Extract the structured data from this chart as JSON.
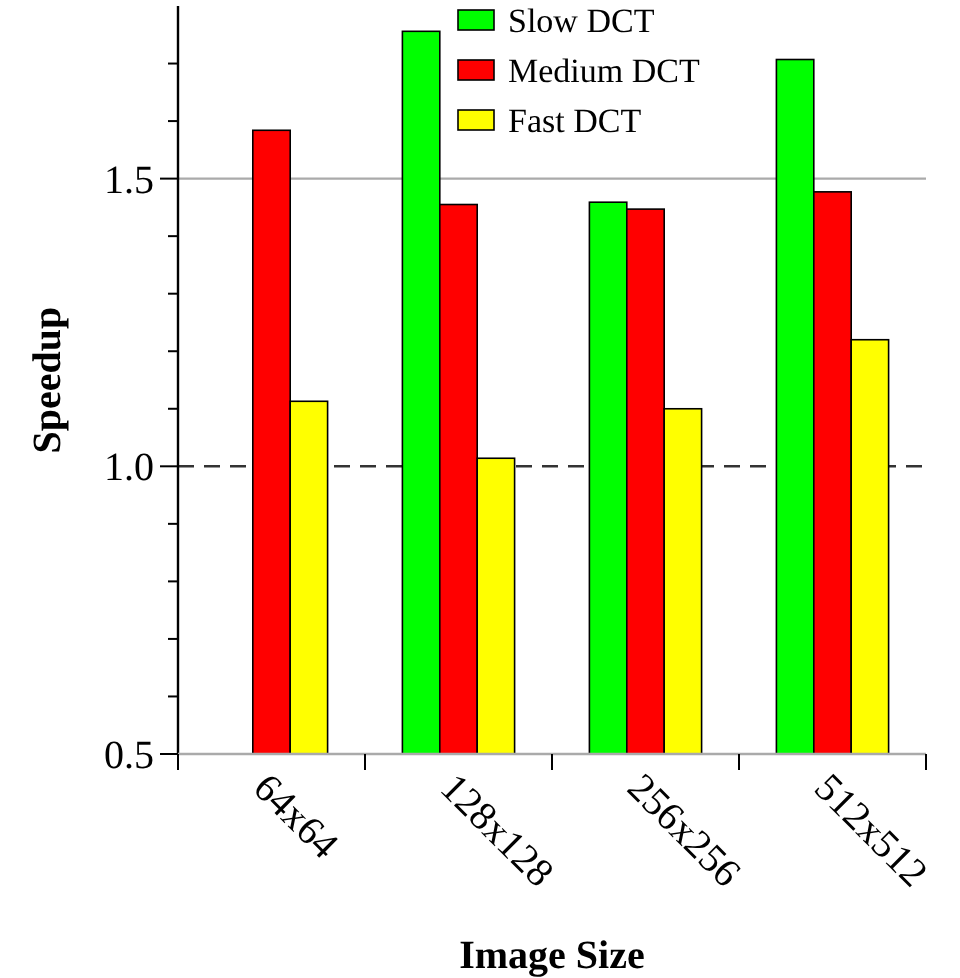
{
  "chart_data": {
    "type": "bar",
    "xlabel": "Image Size",
    "ylabel": "Speedup",
    "categories": [
      "64x64",
      "128x128",
      "256x256",
      "512x512"
    ],
    "series": [
      {
        "name": "Slow DCT",
        "color": "#00ff00",
        "values": [
          null,
          1.756,
          1.459,
          1.707
        ]
      },
      {
        "name": "Medium DCT",
        "color": "#ff0000",
        "values": [
          1.584,
          1.455,
          1.447,
          1.477
        ]
      },
      {
        "name": "Fast DCT",
        "color": "#ffff00",
        "values": [
          1.113,
          1.014,
          1.1,
          1.22
        ]
      }
    ],
    "ylim": [
      0.5,
      1.8
    ],
    "yticks": [
      0.5,
      {
        "value": 0.6,
        "label": null
      },
      {
        "value": 0.7,
        "label": null
      },
      {
        "value": 0.8,
        "label": null
      },
      {
        "value": 0.9,
        "label": null
      },
      {
        "value": 1,
        "label": "1.0"
      },
      {
        "value": 1.1,
        "label": null
      },
      {
        "value": 1.2,
        "label": null
      },
      {
        "value": 1.3,
        "label": null
      },
      {
        "value": 1.4,
        "label": null
      },
      1.5,
      {
        "value": 1.6,
        "label": null
      },
      {
        "value": 1.7,
        "label": null
      }
    ],
    "ref_lines": [
      {
        "axis": "y",
        "value": 1.5,
        "color": "#aaaaaa",
        "line_style": "solid"
      },
      {
        "axis": "y",
        "value": 1,
        "color": "#333333",
        "line_style": "dashed"
      }
    ],
    "grid": false,
    "legend": "top"
  }
}
